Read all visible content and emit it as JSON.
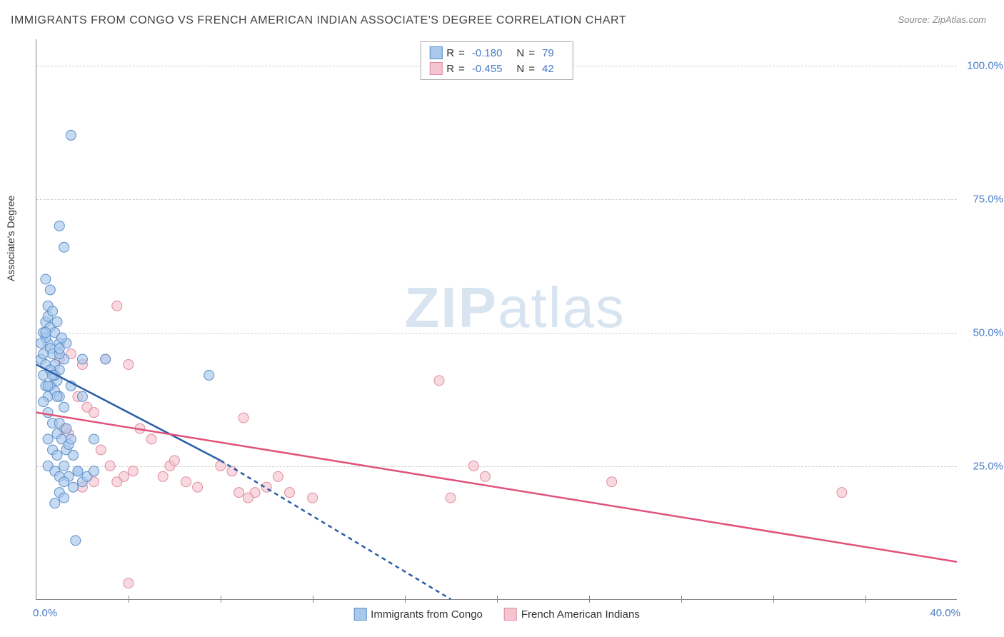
{
  "title": "IMMIGRANTS FROM CONGO VS FRENCH AMERICAN INDIAN ASSOCIATE'S DEGREE CORRELATION CHART",
  "source": "Source: ZipAtlas.com",
  "watermark": {
    "bold": "ZIP",
    "light": "atlas"
  },
  "axis": {
    "y_title": "Associate's Degree",
    "x_min_label": "0.0%",
    "x_max_label": "40.0%",
    "y_ticks": [
      {
        "pct": 25,
        "label": "25.0%"
      },
      {
        "pct": 50,
        "label": "50.0%"
      },
      {
        "pct": 75,
        "label": "75.0%"
      },
      {
        "pct": 100,
        "label": "100.0%"
      }
    ],
    "x_tick_positions_pct": [
      10,
      20,
      30,
      40,
      50,
      60,
      70,
      80,
      90
    ],
    "xlim": [
      0,
      40
    ],
    "ylim": [
      0,
      105
    ]
  },
  "series": {
    "congo": {
      "label": "Immigrants from Congo",
      "fill": "#a8c8ec",
      "stroke": "#5b8fc7",
      "line_color": "#2a5da8",
      "r_value": "-0.180",
      "n_value": "79",
      "trend_solid": {
        "x1": 0,
        "y1": 44,
        "x2": 8,
        "y2": 26
      },
      "trend_dash": {
        "x1": 8,
        "y1": 26,
        "x2": 18,
        "y2": 0
      },
      "points": [
        [
          0.2,
          45
        ],
        [
          0.3,
          50
        ],
        [
          0.4,
          52
        ],
        [
          0.5,
          48
        ],
        [
          0.6,
          47
        ],
        [
          0.3,
          42
        ],
        [
          0.4,
          40
        ],
        [
          0.5,
          38
        ],
        [
          0.7,
          46
        ],
        [
          0.8,
          44
        ],
        [
          0.9,
          41
        ],
        [
          1.0,
          43
        ],
        [
          0.5,
          53
        ],
        [
          0.6,
          51
        ],
        [
          0.4,
          49
        ],
        [
          0.8,
          50
        ],
        [
          1.0,
          48
        ],
        [
          1.2,
          45
        ],
        [
          0.3,
          37
        ],
        [
          0.5,
          35
        ],
        [
          0.7,
          33
        ],
        [
          0.9,
          31
        ],
        [
          1.1,
          30
        ],
        [
          1.3,
          28
        ],
        [
          0.6,
          40
        ],
        [
          0.8,
          39
        ],
        [
          1.0,
          38
        ],
        [
          1.2,
          36
        ],
        [
          1.4,
          29
        ],
        [
          1.6,
          27
        ],
        [
          1.8,
          24
        ],
        [
          2.0,
          22
        ],
        [
          0.4,
          44
        ],
        [
          0.6,
          43
        ],
        [
          0.8,
          42
        ],
        [
          1.0,
          46
        ],
        [
          1.5,
          40
        ],
        [
          2.0,
          38
        ],
        [
          1.2,
          25
        ],
        [
          1.4,
          23
        ],
        [
          1.6,
          21
        ],
        [
          1.8,
          24
        ],
        [
          2.2,
          23
        ],
        [
          2.5,
          24
        ],
        [
          1.0,
          20
        ],
        [
          1.2,
          19
        ],
        [
          0.8,
          18
        ],
        [
          1.5,
          30
        ],
        [
          1.3,
          48
        ],
        [
          0.9,
          52
        ],
        [
          0.5,
          55
        ],
        [
          0.7,
          54
        ],
        [
          1.0,
          70
        ],
        [
          1.2,
          66
        ],
        [
          1.5,
          87
        ],
        [
          0.4,
          60
        ],
        [
          0.6,
          58
        ],
        [
          7.5,
          42
        ],
        [
          3.0,
          45
        ],
        [
          2.0,
          45
        ],
        [
          1.0,
          33
        ],
        [
          1.3,
          32
        ],
        [
          0.5,
          30
        ],
        [
          0.7,
          28
        ],
        [
          0.9,
          27
        ],
        [
          1.0,
          47
        ],
        [
          1.1,
          49
        ],
        [
          0.3,
          46
        ],
        [
          0.2,
          48
        ],
        [
          0.4,
          50
        ],
        [
          0.5,
          40
        ],
        [
          0.7,
          42
        ],
        [
          0.9,
          38
        ],
        [
          1.7,
          11
        ],
        [
          2.5,
          30
        ],
        [
          0.5,
          25
        ],
        [
          0.8,
          24
        ],
        [
          1.0,
          23
        ],
        [
          1.2,
          22
        ]
      ]
    },
    "french": {
      "label": "French American Indians",
      "fill": "#f5c4d0",
      "stroke": "#e08ba2",
      "line_color": "#e0527a",
      "r_value": "-0.455",
      "n_value": "42",
      "trend_solid": {
        "x1": 0,
        "y1": 35,
        "x2": 40,
        "y2": 7
      },
      "points": [
        [
          1.0,
          45
        ],
        [
          1.5,
          46
        ],
        [
          2.0,
          44
        ],
        [
          1.8,
          38
        ],
        [
          2.2,
          36
        ],
        [
          2.5,
          35
        ],
        [
          3.0,
          45
        ],
        [
          3.5,
          55
        ],
        [
          4.0,
          44
        ],
        [
          4.5,
          32
        ],
        [
          3.2,
          25
        ],
        [
          3.8,
          23
        ],
        [
          4.2,
          24
        ],
        [
          5.0,
          30
        ],
        [
          5.5,
          23
        ],
        [
          5.8,
          25
        ],
        [
          6.0,
          26
        ],
        [
          6.5,
          22
        ],
        [
          7.0,
          21
        ],
        [
          8.0,
          25
        ],
        [
          8.5,
          24
        ],
        [
          9.0,
          34
        ],
        [
          9.5,
          20
        ],
        [
          10.0,
          21
        ],
        [
          10.5,
          23
        ],
        [
          9.2,
          19
        ],
        [
          8.8,
          20
        ],
        [
          11.0,
          20
        ],
        [
          12.0,
          19
        ],
        [
          17.5,
          41
        ],
        [
          18.0,
          19
        ],
        [
          19.0,
          25
        ],
        [
          19.5,
          23
        ],
        [
          25.0,
          22
        ],
        [
          35.0,
          20
        ],
        [
          1.2,
          32
        ],
        [
          1.4,
          31
        ],
        [
          2.8,
          28
        ],
        [
          3.5,
          22
        ],
        [
          4.0,
          3
        ],
        [
          2.0,
          21
        ],
        [
          2.5,
          22
        ]
      ]
    }
  },
  "legend_labels": {
    "r": "R",
    "eq": "=",
    "n": "N"
  },
  "style": {
    "marker_radius": 7,
    "marker_opacity": 0.65,
    "trend_width": 2.5,
    "dash_pattern": "6,5",
    "background": "#ffffff",
    "grid_color": "#cccccc"
  }
}
